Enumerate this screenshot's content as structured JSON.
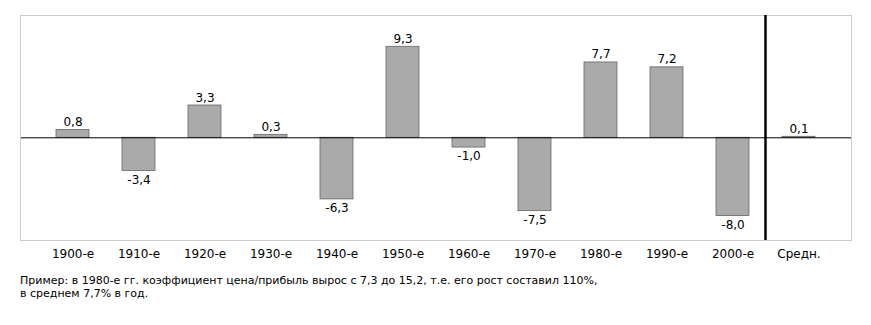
{
  "chart_data": {
    "type": "bar",
    "categories": [
      "1900-е",
      "1910-е",
      "1920-е",
      "1930-е",
      "1940-е",
      "1950-е",
      "1960-е",
      "1970-е",
      "1980-е",
      "1990-е",
      "2000-е",
      "Средн."
    ],
    "values": [
      0.8,
      -3.4,
      3.3,
      0.3,
      -6.3,
      9.3,
      -1.0,
      -7.5,
      7.7,
      7.2,
      -8.0,
      0.1
    ],
    "value_labels": [
      "0,8",
      "-3,4",
      "3,3",
      "0,3",
      "-6,3",
      "9,3",
      "-1,0",
      "-7,5",
      "7,7",
      "7,2",
      "-8,0",
      "0,1"
    ],
    "data_labels": true,
    "color": "#aaaaaa",
    "ylim": [
      -10.5,
      12.5
    ],
    "yticks": [],
    "tick_labels": "x",
    "grid": false,
    "annotations": [
      "Пример: в 1980-е гг. коэффициент цена/прибыль вырос с 7,3 до 15,2, т.е. его рост составил 110%,\nв среднем 7,7% в год."
    ]
  }
}
